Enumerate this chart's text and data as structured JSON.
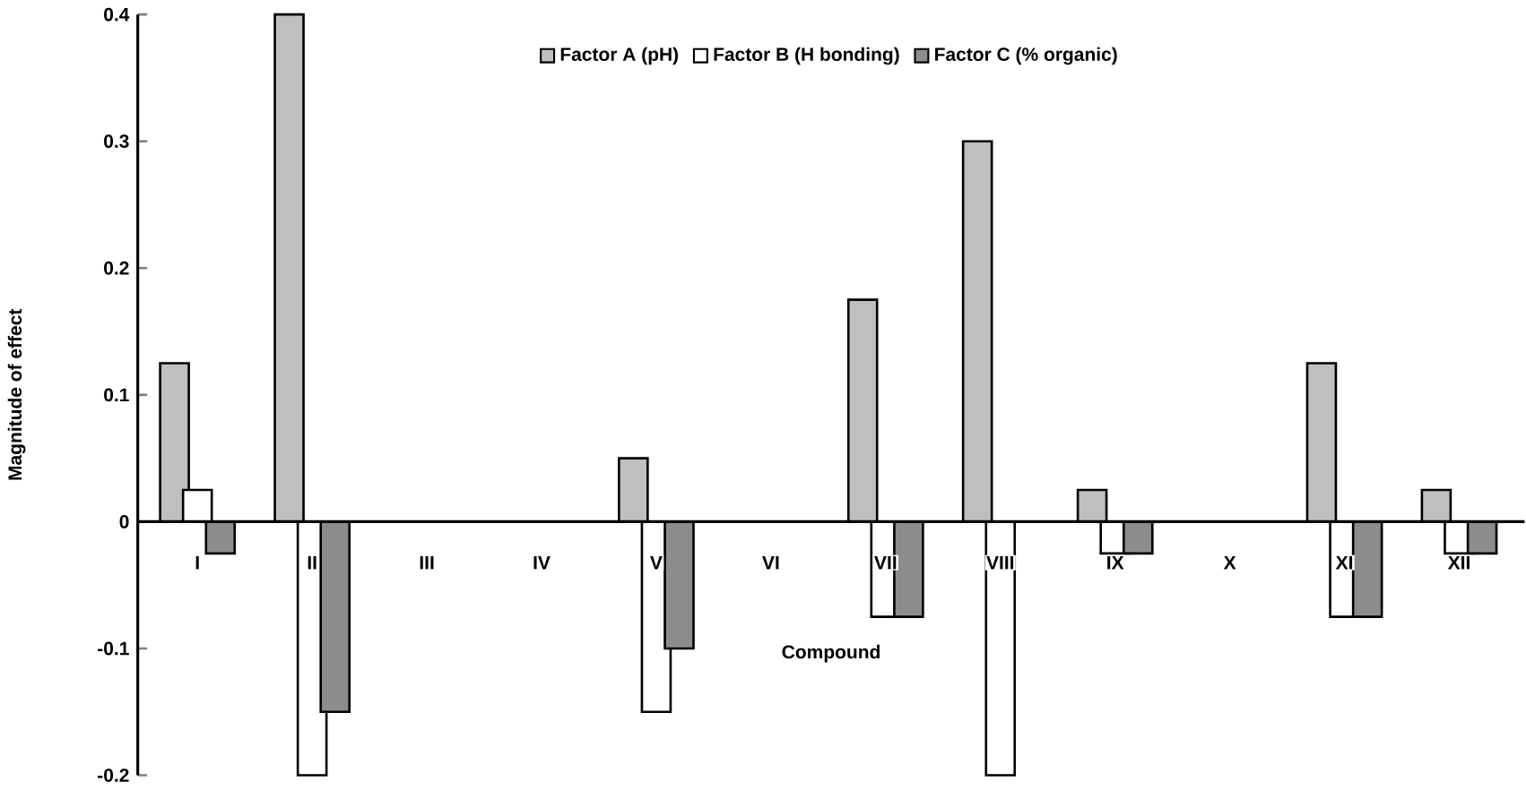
{
  "chart_data": {
    "type": "bar",
    "xlabel": "Compound",
    "ylabel": "Magnitude of effect",
    "categories": [
      "I",
      "II",
      "III",
      "IV",
      "V",
      "VI",
      "VII",
      "VIII",
      "IX",
      "X",
      "XI",
      "XII"
    ],
    "series": [
      {
        "name": "Factor A (pH)",
        "color": "#bfbfbf",
        "values": [
          0.125,
          0.4,
          0,
          0,
          0.05,
          0,
          0.175,
          0.3,
          0.025,
          0,
          0.125,
          0.025
        ]
      },
      {
        "name": "Factor B (H bonding)",
        "color": "#ffffff",
        "values": [
          0.025,
          -0.2,
          0,
          0,
          -0.15,
          0,
          -0.075,
          -0.2,
          -0.025,
          0,
          -0.075,
          -0.025
        ]
      },
      {
        "name": "Factor C (% organic)",
        "color": "#8c8c8c",
        "values": [
          -0.025,
          -0.15,
          0,
          0,
          -0.1,
          0,
          -0.075,
          0,
          -0.025,
          0,
          -0.075,
          -0.025
        ]
      }
    ],
    "ylim": [
      -0.2,
      0.4
    ],
    "yticks": [
      -0.2,
      -0.1,
      0,
      0.1,
      0.2,
      0.3,
      0.4
    ],
    "grid": false,
    "legend": "top"
  }
}
